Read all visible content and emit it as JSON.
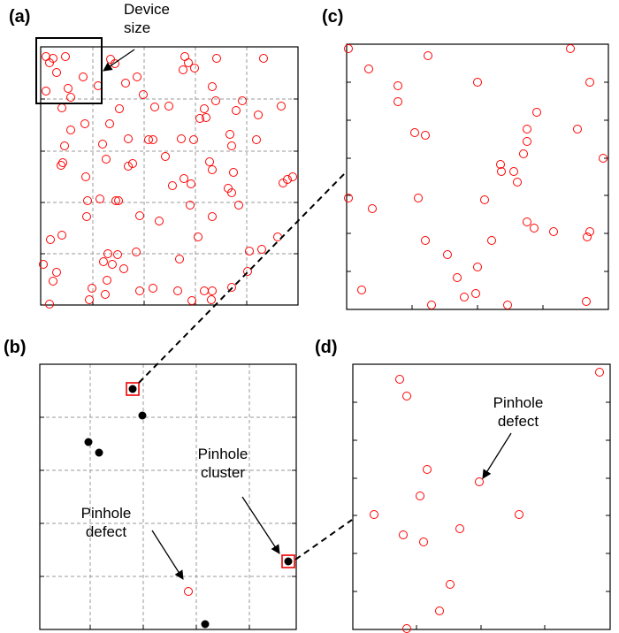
{
  "chart_data": [
    {
      "type": "scatter",
      "title": "(a)",
      "xlim": [
        0,
        291
      ],
      "ylim": [
        0,
        292
      ],
      "grid": true,
      "xticks": [
        59,
        117,
        175,
        233
      ],
      "yticks": [
        58,
        116,
        174,
        233
      ],
      "annotations": [
        "Device size"
      ],
      "series": [
        {
          "color": "#ff0000",
          "marker": "open",
          "x": [
            6,
            14,
            10,
            28,
            18,
            6,
            31,
            34,
            24,
            48,
            79,
            84,
            65,
            96,
            109,
            163,
            167,
            161,
            174,
            199,
            252,
            116,
            129,
            89,
            145,
            194,
            185,
            180,
            187,
            198,
            221,
            228,
            246,
            272,
            50,
            78,
            34,
            99,
            122,
            127,
            159,
            173,
            214,
            244,
            27,
            70,
            141,
            216,
            23,
            25,
            74,
            99,
            104,
            191,
            162,
            194,
            170,
            149,
            218,
            51,
            279,
            285,
            274,
            212,
            216,
            67,
            85,
            88,
            53,
            169,
            224,
            112,
            134,
            194,
            52,
            11,
            24,
            178,
            268,
            76,
            87,
            108,
            236,
            250,
            71,
            81,
            3,
            18,
            14,
            75,
            94,
            157,
            234,
            58,
            112,
            127,
            185,
            194,
            216,
            55,
            73,
            10,
            171,
            193,
            155
          ],
          "values": [
            281,
            279,
            274,
            281,
            263,
            242,
            245,
            235,
            223,
            258,
            278,
            273,
            248,
            251,
            258,
            281,
            274,
            266,
            268,
            279,
            279,
            238,
            224,
            222,
            225,
            247,
            222,
            211,
            212,
            231,
            220,
            231,
            215,
            225,
            205,
            205,
            198,
            188,
            187,
            187,
            188,
            187,
            193,
            187,
            180,
            182,
            168,
            180,
            158,
            161,
            165,
            157,
            160,
            162,
            143,
            153,
            137,
            135,
            150,
            145,
            142,
            145,
            138,
            132,
            127,
            120,
            118,
            118,
            118,
            113,
            113,
            101,
            95,
            100,
            100,
            74,
            79,
            77,
            77,
            58,
            57,
            60,
            61,
            63,
            49,
            46,
            46,
            37,
            27,
            28,
            41,
            52,
            38,
            19,
            16,
            19,
            16,
            16,
            20,
            6,
            12,
            1,
            5,
            6,
            16
          ]
        }
      ]
    },
    {
      "type": "scatter",
      "title": "(b)",
      "xlim": [
        0,
        290
      ],
      "ylim": [
        0,
        300
      ],
      "grid": true,
      "xticks": [
        57,
        117,
        177,
        237
      ],
      "yticks": [
        60,
        120,
        180,
        240
      ],
      "annotations": [
        "Pinhole defect",
        "Pinhole cluster"
      ],
      "series": [
        {
          "color": "#000000",
          "marker": "filled",
          "x": [
            105,
            116,
            55,
            67,
            187,
            281
          ],
          "values": [
            272,
            242,
            212,
            200,
            6,
            77
          ]
        },
        {
          "color": "#ff0000",
          "marker": "open",
          "x": [
            168
          ],
          "values": [
            43
          ]
        }
      ]
    },
    {
      "type": "scatter",
      "title": "(c)",
      "xlim": [
        0,
        296
      ],
      "ylim": [
        0,
        300
      ],
      "grid": false,
      "xticks": [
        74,
        148,
        222
      ],
      "yticks": [
        43,
        86,
        129,
        171,
        214,
        257
      ],
      "series": [
        {
          "color": "#ff0000",
          "marker": "open",
          "x": [
            2,
            25,
            92,
            253,
            58,
            148,
            275,
            58,
            215,
            77,
            89,
            204,
            261,
            204,
            200,
            174,
            290,
            189,
            175,
            193,
            2,
            29,
            81,
            156,
            204,
            212,
            234,
            275,
            272,
            164,
            89,
            114,
            148,
            125,
            17,
            146,
            133,
            96,
            182,
            271
          ],
          "values": [
            295,
            272,
            287,
            295,
            253,
            257,
            257,
            235,
            223,
            200,
            197,
            204,
            204,
            190,
            176,
            164,
            171,
            156,
            156,
            144,
            126,
            114,
            126,
            124,
            99,
            92,
            88,
            88,
            82,
            78,
            78,
            62,
            48,
            36,
            22,
            18,
            14,
            5,
            5,
            9
          ]
        }
      ]
    },
    {
      "type": "scatter",
      "title": "(d)",
      "xlim": [
        0,
        291
      ],
      "ylim": [
        0,
        300
      ],
      "grid": false,
      "xticks": [
        72,
        145,
        217
      ],
      "yticks": [
        43,
        86,
        129,
        171,
        214,
        257
      ],
      "annotations": [
        "Pinhole defect"
      ],
      "series": [
        {
          "color": "#ff0000",
          "marker": "open",
          "x": [
            53,
            61,
            279,
            84,
            143,
            76,
            24,
            188,
            121,
            57,
            80,
            110,
            98,
            61
          ],
          "values": [
            283,
            264,
            291,
            181,
            167,
            151,
            130,
            130,
            114,
            107,
            99,
            51,
            21,
            1
          ]
        }
      ]
    }
  ]
}
